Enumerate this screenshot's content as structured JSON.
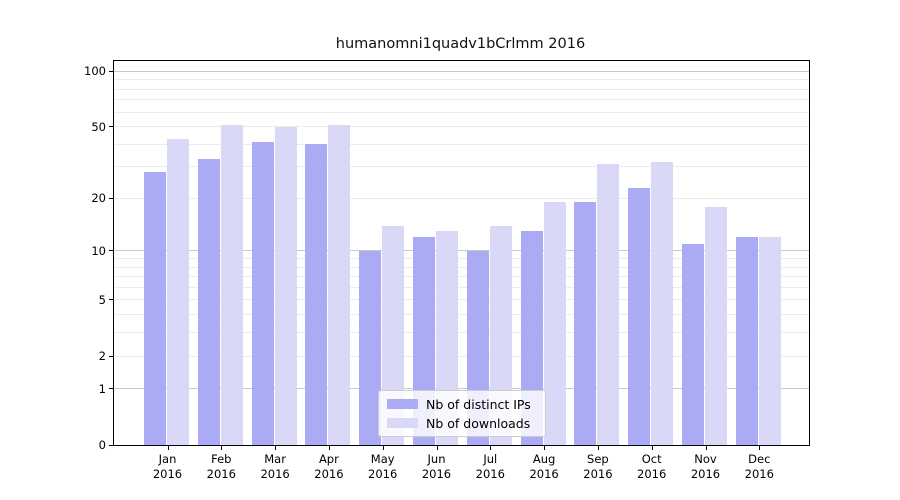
{
  "chart_data": {
    "type": "bar",
    "title": "humanomni1quadv1bCrlmm 2016",
    "categories": [
      "Jan",
      "Feb",
      "Mar",
      "Apr",
      "May",
      "Jun",
      "Jul",
      "Aug",
      "Sep",
      "Oct",
      "Nov",
      "Dec"
    ],
    "category_year_line": "2016",
    "series": [
      {
        "name": "Nb of distinct IPs",
        "color": "#aaaaf5",
        "values": [
          28,
          33,
          41,
          40,
          10,
          12,
          10,
          13,
          19,
          23,
          11,
          12
        ]
      },
      {
        "name": "Nb of downloads",
        "color": "#d9d9f7",
        "values": [
          43,
          51,
          50,
          51,
          14,
          13,
          14,
          19,
          31,
          32,
          18,
          12
        ]
      }
    ],
    "xlabel": "",
    "ylabel": "",
    "y_axis": {
      "scale": "log1p",
      "tick_values": [
        0,
        1,
        2,
        5,
        10,
        20,
        50,
        100
      ],
      "major_grid_values": [
        1,
        10,
        100
      ],
      "minor_grid_values": [
        2,
        3,
        4,
        5,
        6,
        7,
        8,
        9,
        20,
        30,
        40,
        50,
        60,
        70,
        80,
        90
      ],
      "ylim": [
        0,
        110
      ]
    },
    "grid": true,
    "legend_position": "lower center"
  },
  "colors": {
    "background": "#ffffff",
    "axis": "#000000",
    "grid_minor": "#ebebeb",
    "grid_major": "#c9c9c9",
    "bar_distinct_ips": "#aaaaf5",
    "bar_downloads": "#d9d9f7",
    "legend_border": "#cccccc"
  }
}
